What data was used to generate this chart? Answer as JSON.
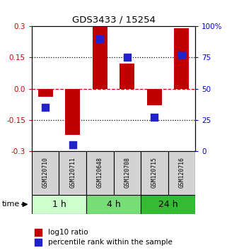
{
  "title": "GDS3433 / 15254",
  "samples": [
    "GSM120710",
    "GSM120711",
    "GSM120648",
    "GSM120708",
    "GSM120715",
    "GSM120716"
  ],
  "log10_ratio": [
    -0.04,
    -0.22,
    0.3,
    0.12,
    -0.08,
    0.29
  ],
  "percentile_rank": [
    35,
    5,
    90,
    75,
    27,
    77
  ],
  "ylim_left": [
    -0.3,
    0.3
  ],
  "ylim_right": [
    0,
    100
  ],
  "bar_color": "#c00000",
  "dot_color": "#2222cc",
  "time_groups": [
    {
      "label": "1 h",
      "start": 0,
      "end": 2,
      "color": "#ccffcc"
    },
    {
      "label": "4 h",
      "start": 2,
      "end": 4,
      "color": "#77dd77"
    },
    {
      "label": "24 h",
      "start": 4,
      "end": 6,
      "color": "#33bb33"
    }
  ],
  "left_axis_color": "#cc0000",
  "right_axis_color": "#0000cc",
  "left_ticks": [
    0.3,
    0.15,
    0.0,
    -0.15,
    -0.3
  ],
  "right_ticks": [
    100,
    75,
    50,
    25,
    0
  ],
  "right_tick_labels": [
    "100%",
    "75",
    "50",
    "25",
    "0"
  ],
  "bar_width": 0.55,
  "dot_size": 55,
  "legend_red_label": "log10 ratio",
  "legend_blue_label": "percentile rank within the sample",
  "time_label": "time",
  "sample_bg": "#d3d3d3",
  "background_color": "#ffffff"
}
